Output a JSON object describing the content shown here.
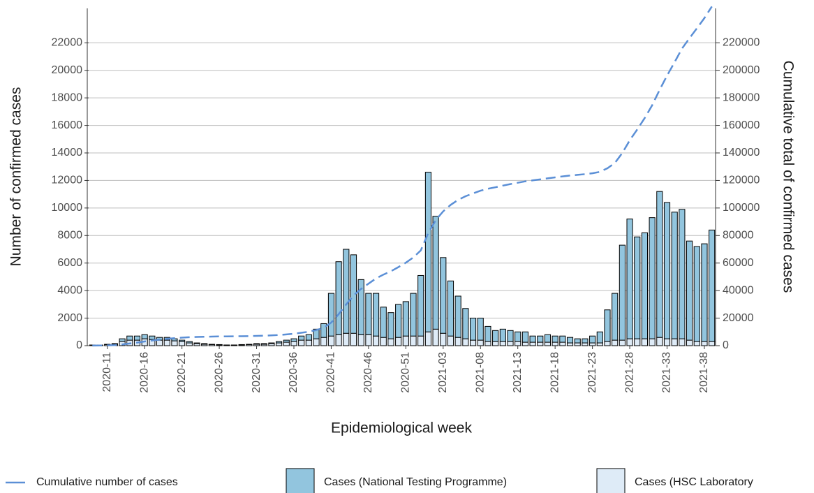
{
  "chart_data": {
    "type": "bar",
    "x_label": "Epidemiological week",
    "y_label": "Number of confirmed cases",
    "y2_label": "Cumulative total of confirmed cases",
    "categories": [
      null,
      null,
      "2020-11",
      null,
      null,
      null,
      null,
      "2020-16",
      null,
      null,
      null,
      null,
      "2020-21",
      null,
      null,
      null,
      null,
      "2020-26",
      null,
      null,
      null,
      null,
      "2020-31",
      null,
      null,
      null,
      null,
      "2020-36",
      null,
      null,
      null,
      null,
      "2020-41",
      null,
      null,
      null,
      null,
      "2020-46",
      null,
      null,
      null,
      null,
      "2020-51",
      null,
      null,
      null,
      null,
      "2021-03",
      null,
      null,
      null,
      null,
      "2021-08",
      null,
      null,
      null,
      null,
      "2021-13",
      null,
      null,
      null,
      null,
      "2021-18",
      null,
      null,
      null,
      null,
      "2021-23",
      null,
      null,
      null,
      null,
      "2021-28",
      null,
      null,
      null,
      null,
      "2021-33",
      null,
      null,
      null,
      null,
      "2021-38",
      null
    ],
    "series": [
      {
        "name": "Cumulative number of cases",
        "kind": "line",
        "axis": "y2",
        "color": "#5b8fd6",
        "dashed": true,
        "values": [
          50,
          100,
          200,
          350,
          850,
          1550,
          2250,
          3050,
          3750,
          4350,
          4950,
          5450,
          5850,
          6150,
          6350,
          6500,
          6600,
          6680,
          6730,
          6780,
          6860,
          6960,
          7110,
          7260,
          7460,
          7760,
          8160,
          8660,
          9360,
          10160,
          11360,
          12960,
          16760,
          22860,
          29860,
          36460,
          41260,
          45060,
          48860,
          51660,
          54060,
          57060,
          60260,
          64060,
          69160,
          81760,
          91160,
          97560,
          102260,
          105860,
          108560,
          110560,
          112560,
          113960,
          115060,
          116260,
          117360,
          118360,
          119360,
          120060,
          120760,
          121560,
          122260,
          122960,
          123560,
          124060,
          124560,
          125260,
          126260,
          128860,
          132660,
          139960,
          149160,
          157060,
          165260,
          174560,
          185760,
          196160,
          205860,
          215760,
          223360,
          230560,
          237960,
          246360
        ]
      },
      {
        "name": "Cases (National Testing Programme)",
        "kind": "bar",
        "color": "#92c5de",
        "values": [
          0,
          0,
          20,
          50,
          200,
          300,
          300,
          300,
          250,
          200,
          200,
          150,
          100,
          100,
          50,
          50,
          20,
          20,
          10,
          10,
          20,
          20,
          50,
          50,
          50,
          100,
          150,
          200,
          300,
          400,
          700,
          1000,
          3100,
          5300,
          6100,
          5700,
          4000,
          3000,
          3100,
          2200,
          1900,
          2400,
          2500,
          3100,
          4400,
          11600,
          8200,
          5500,
          4000,
          3000,
          2200,
          1600,
          1600,
          1100,
          800,
          900,
          800,
          700,
          750,
          450,
          450,
          550,
          450,
          450,
          400,
          300,
          300,
          500,
          800,
          2300,
          3400,
          6900,
          8700,
          7400,
          7700,
          8800,
          10600,
          9900,
          9200,
          9400,
          7200,
          6900,
          7100,
          8100
        ]
      },
      {
        "name": "Cases (HSC Laboratory",
        "kind": "bar",
        "color": "#deebf7",
        "values": [
          50,
          50,
          80,
          100,
          300,
          400,
          400,
          500,
          450,
          400,
          400,
          350,
          300,
          200,
          150,
          100,
          80,
          60,
          40,
          40,
          60,
          80,
          100,
          100,
          150,
          200,
          250,
          300,
          400,
          400,
          500,
          600,
          700,
          800,
          900,
          900,
          800,
          800,
          700,
          600,
          500,
          600,
          700,
          700,
          700,
          1000,
          1200,
          900,
          700,
          600,
          500,
          400,
          400,
          300,
          300,
          300,
          300,
          300,
          250,
          250,
          250,
          250,
          250,
          250,
          200,
          200,
          200,
          200,
          200,
          300,
          400,
          400,
          500,
          500,
          500,
          500,
          600,
          500,
          500,
          500,
          400,
          300,
          300,
          300
        ]
      }
    ],
    "ylim": [
      0,
      24500
    ],
    "yticks": [
      0,
      2000,
      4000,
      6000,
      8000,
      10000,
      12000,
      14000,
      16000,
      18000,
      20000,
      22000
    ],
    "y2lim": [
      0,
      245000
    ],
    "y2ticks": [
      0,
      20000,
      40000,
      60000,
      80000,
      100000,
      120000,
      140000,
      160000,
      180000,
      200000,
      220000
    ],
    "grid": true,
    "legend": "bottom"
  }
}
